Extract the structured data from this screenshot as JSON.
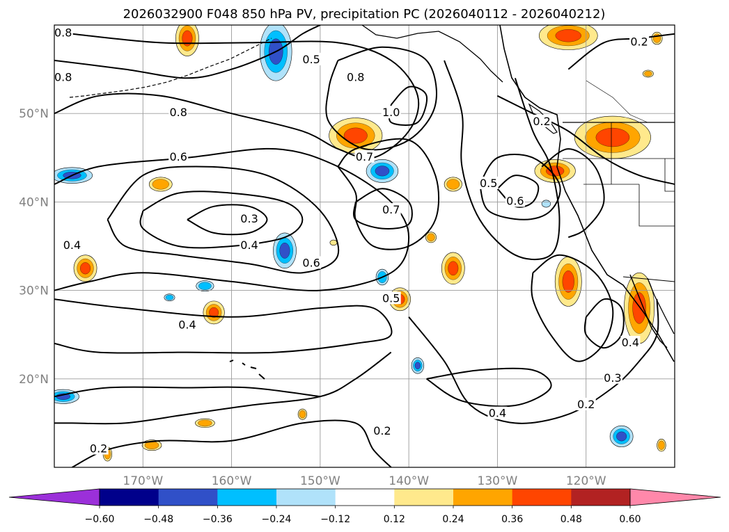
{
  "chart_data": {
    "type": "contour-map",
    "title": "2026032900 F048 850 hPa PV, precipitation PC (2026040112 - 2026040212)",
    "x_ticks": [
      "170°W",
      "160°W",
      "150°W",
      "140°W",
      "130°W",
      "120°W"
    ],
    "y_ticks": [
      "50°N",
      "40°N",
      "30°N",
      "20°N"
    ],
    "xlim": [
      -180,
      -110
    ],
    "ylim": [
      10,
      60
    ],
    "grid": true,
    "colorbar": {
      "levels": [
        -0.6,
        -0.48,
        -0.36,
        -0.24,
        -0.12,
        0.12,
        0.24,
        0.36,
        0.48,
        0.6
      ],
      "tick_labels": [
        "−0.60",
        "−0.48",
        "−0.36",
        "−0.24",
        "−0.12",
        "0.12",
        "0.24",
        "0.36",
        "0.48",
        "0.60"
      ],
      "colors": [
        "#9b30d9",
        "#00008b",
        "#3050c8",
        "#00bfff",
        "#b0e2fa",
        "#ffffff",
        "#ffe98c",
        "#ffa500",
        "#ff4500",
        "#b22222",
        "#ff88aa"
      ],
      "extend": "both"
    },
    "contour_labels": [
      {
        "text": "0.8",
        "lon": -179,
        "lat": 59
      },
      {
        "text": "0.8",
        "lon": -179,
        "lat": 54
      },
      {
        "text": "0.5",
        "lon": -151,
        "lat": 56
      },
      {
        "text": "0.8",
        "lon": -146,
        "lat": 54
      },
      {
        "text": "0.8",
        "lon": -166,
        "lat": 50
      },
      {
        "text": "1.0",
        "lon": -142,
        "lat": 50
      },
      {
        "text": "0.6",
        "lon": -166,
        "lat": 45
      },
      {
        "text": "0.7",
        "lon": -145,
        "lat": 45
      },
      {
        "text": "0.5",
        "lon": -131,
        "lat": 42
      },
      {
        "text": "0.6",
        "lon": -128,
        "lat": 40
      },
      {
        "text": "0.3",
        "lon": -158,
        "lat": 38
      },
      {
        "text": "0.7",
        "lon": -142,
        "lat": 39
      },
      {
        "text": "0.4",
        "lon": -158,
        "lat": 35
      },
      {
        "text": "0.4",
        "lon": -178,
        "lat": 35
      },
      {
        "text": "0.6",
        "lon": -151,
        "lat": 33
      },
      {
        "text": "0.5",
        "lon": -142,
        "lat": 29
      },
      {
        "text": "0.4",
        "lon": -165,
        "lat": 26
      },
      {
        "text": "0.4",
        "lon": -115,
        "lat": 24
      },
      {
        "text": "0.3",
        "lon": -117,
        "lat": 20
      },
      {
        "text": "0.2",
        "lon": -120,
        "lat": 17
      },
      {
        "text": "0.4",
        "lon": -130,
        "lat": 16
      },
      {
        "text": "0.2",
        "lon": -143,
        "lat": 14
      },
      {
        "text": "0.2",
        "lon": -175,
        "lat": 12
      },
      {
        "text": "0.2",
        "lon": -125,
        "lat": 49
      },
      {
        "text": "0.2",
        "lon": -114,
        "lat": 58
      }
    ],
    "contour_lines": [
      {
        "pts": [
          [
            -170,
            39
          ],
          [
            -166,
            41
          ],
          [
            -160,
            41
          ],
          [
            -154,
            40
          ],
          [
            -152,
            38
          ],
          [
            -154,
            36
          ],
          [
            -160,
            35
          ],
          [
            -166,
            35
          ],
          [
            -170,
            37
          ],
          [
            -170,
            39
          ]
        ]
      },
      {
        "pts": [
          [
            -165,
            38
          ],
          [
            -162,
            39.5
          ],
          [
            -158,
            39.5
          ],
          [
            -156,
            38
          ],
          [
            -158,
            36.5
          ],
          [
            -162,
            36.5
          ],
          [
            -165,
            38
          ]
        ]
      },
      {
        "pts": [
          [
            -174,
            38
          ],
          [
            -170,
            43
          ],
          [
            -164,
            44
          ],
          [
            -156,
            43
          ],
          [
            -150,
            39
          ],
          [
            -148,
            34
          ],
          [
            -152,
            32
          ],
          [
            -158,
            33
          ],
          [
            -166,
            34
          ],
          [
            -172,
            35
          ],
          [
            -174,
            38
          ]
        ]
      },
      {
        "pts": [
          [
            -180,
            42
          ],
          [
            -175,
            44
          ],
          [
            -165,
            45
          ],
          [
            -155,
            46
          ],
          [
            -148,
            44
          ],
          [
            -142,
            40
          ],
          [
            -140,
            36
          ],
          [
            -142,
            32
          ],
          [
            -150,
            30
          ],
          [
            -160,
            31
          ],
          [
            -170,
            32
          ],
          [
            -176,
            31
          ],
          [
            -180,
            30
          ]
        ]
      },
      {
        "pts": [
          [
            -180,
            29
          ],
          [
            -172,
            28
          ],
          [
            -160,
            27
          ],
          [
            -150,
            28
          ],
          [
            -144,
            28
          ],
          [
            -142,
            25
          ],
          [
            -146,
            24
          ],
          [
            -155,
            23
          ],
          [
            -165,
            23
          ],
          [
            -175,
            23
          ],
          [
            -180,
            24
          ]
        ]
      },
      {
        "pts": [
          [
            -180,
            50
          ],
          [
            -175,
            52
          ],
          [
            -168,
            52
          ],
          [
            -160,
            50
          ],
          [
            -152,
            48
          ],
          [
            -148,
            46
          ],
          [
            -144,
            45
          ],
          [
            -140,
            48
          ],
          [
            -139,
            52
          ],
          [
            -142,
            56
          ],
          [
            -148,
            58
          ],
          [
            -158,
            58
          ],
          [
            -168,
            58
          ],
          [
            -178,
            59
          ]
        ]
      },
      {
        "pts": [
          [
            -180,
            56
          ],
          [
            -172,
            55
          ],
          [
            -165,
            54
          ],
          [
            -160,
            55
          ],
          [
            -155,
            57
          ],
          [
            -152,
            59
          ],
          [
            -150,
            60
          ]
        ]
      },
      {
        "pts": [
          [
            -148,
            56
          ],
          [
            -143,
            57.5
          ],
          [
            -138,
            56
          ],
          [
            -137,
            51
          ],
          [
            -140,
            47
          ],
          [
            -145,
            46
          ],
          [
            -149,
            49
          ],
          [
            -149,
            53
          ],
          [
            -148,
            56
          ]
        ]
      },
      {
        "pts": [
          [
            -142,
            51
          ],
          [
            -140,
            53
          ],
          [
            -138,
            52
          ],
          [
            -139,
            49
          ],
          [
            -142,
            49
          ],
          [
            -142,
            51
          ]
        ]
      },
      {
        "pts": [
          [
            -148,
            44
          ],
          [
            -146,
            46
          ],
          [
            -140,
            47
          ],
          [
            -137,
            43
          ],
          [
            -137,
            38
          ],
          [
            -140,
            35
          ],
          [
            -144,
            35
          ],
          [
            -146,
            38
          ],
          [
            -146,
            41
          ],
          [
            -148,
            44
          ]
        ]
      },
      {
        "pts": [
          [
            -146,
            40
          ],
          [
            -143,
            41.5
          ],
          [
            -140,
            40
          ],
          [
            -140,
            37.5
          ],
          [
            -143,
            37
          ],
          [
            -146,
            38
          ],
          [
            -146,
            40
          ]
        ]
      },
      {
        "pts": [
          [
            -136,
            56
          ],
          [
            -134,
            50
          ],
          [
            -134,
            44
          ],
          [
            -132,
            38
          ],
          [
            -128,
            34
          ],
          [
            -124,
            34
          ],
          [
            -123,
            38
          ],
          [
            -124,
            44
          ],
          [
            -126,
            48
          ],
          [
            -128,
            54
          ]
        ]
      },
      {
        "pts": [
          [
            -132,
            42
          ],
          [
            -130,
            45
          ],
          [
            -126,
            45
          ],
          [
            -123,
            42
          ],
          [
            -124,
            39
          ],
          [
            -127,
            38
          ],
          [
            -131,
            39
          ],
          [
            -132,
            42
          ]
        ]
      },
      {
        "pts": [
          [
            -130,
            41.5
          ],
          [
            -128,
            43
          ],
          [
            -125.5,
            42
          ],
          [
            -126,
            40
          ],
          [
            -128,
            39.5
          ],
          [
            -130,
            41.5
          ]
        ]
      },
      {
        "pts": [
          [
            -125,
            44
          ],
          [
            -122,
            46
          ],
          [
            -119,
            44
          ],
          [
            -118,
            40
          ],
          [
            -120,
            37
          ],
          [
            -122,
            36
          ]
        ]
      },
      {
        "pts": [
          [
            -126,
            32
          ],
          [
            -123,
            34
          ],
          [
            -119,
            32
          ],
          [
            -117,
            28
          ],
          [
            -118,
            24
          ],
          [
            -121,
            22
          ],
          [
            -124,
            25
          ],
          [
            -126,
            29
          ],
          [
            -126,
            32
          ]
        ]
      },
      {
        "pts": [
          [
            -120,
            27
          ],
          [
            -118,
            29
          ],
          [
            -116,
            28
          ],
          [
            -116,
            25
          ],
          [
            -118,
            23.5
          ],
          [
            -120,
            25
          ],
          [
            -120,
            27
          ]
        ]
      },
      {
        "pts": [
          [
            -140,
            27
          ],
          [
            -136,
            22
          ],
          [
            -133,
            17
          ],
          [
            -128,
            15
          ],
          [
            -122,
            16
          ],
          [
            -117,
            19
          ],
          [
            -114,
            22
          ],
          [
            -112,
            25
          ],
          [
            -112,
            29
          ]
        ]
      },
      {
        "pts": [
          [
            -138,
            20
          ],
          [
            -134,
            17.5
          ],
          [
            -128,
            17
          ],
          [
            -124,
            19
          ],
          [
            -126,
            21
          ],
          [
            -132,
            21
          ],
          [
            -138,
            20
          ]
        ]
      },
      {
        "pts": [
          [
            -142,
            23
          ],
          [
            -146,
            20
          ],
          [
            -150,
            18
          ],
          [
            -158,
            17
          ],
          [
            -165,
            16
          ],
          [
            -172,
            15
          ],
          [
            -178,
            15
          ],
          [
            -180,
            15
          ]
        ]
      },
      {
        "pts": [
          [
            -180,
            18
          ],
          [
            -174,
            19
          ],
          [
            -165,
            19
          ],
          [
            -158,
            19
          ],
          [
            -150,
            18
          ]
        ]
      },
      {
        "pts": [
          [
            -178,
            10
          ],
          [
            -174,
            12
          ],
          [
            -168,
            13
          ],
          [
            -160,
            13
          ],
          [
            -152,
            15
          ],
          [
            -146,
            15
          ],
          [
            -144,
            12
          ],
          [
            -142,
            10
          ]
        ]
      },
      {
        "pts": [
          [
            -122,
            55
          ],
          [
            -118,
            58
          ],
          [
            -114,
            58.5
          ],
          [
            -110,
            59
          ]
        ]
      },
      {
        "pts": [
          [
            -130,
            52
          ],
          [
            -126,
            50
          ],
          [
            -122,
            48
          ],
          [
            -118,
            45
          ],
          [
            -114,
            43
          ],
          [
            -110,
            42
          ]
        ]
      }
    ],
    "precip_blobs": [
      {
        "lon": -146,
        "lat": 47.5,
        "rx": 3,
        "ry": 2,
        "value": 0.4
      },
      {
        "lon": -165,
        "lat": 58.5,
        "rx": 1.3,
        "ry": 2,
        "value": 0.4
      },
      {
        "lon": -155,
        "lat": 57,
        "rx": 1.8,
        "ry": 3.3,
        "value": -0.4
      },
      {
        "lon": -143,
        "lat": 43.5,
        "rx": 1.8,
        "ry": 1.3,
        "value": -0.4
      },
      {
        "lon": -178,
        "lat": 43,
        "rx": 2.3,
        "ry": 0.9,
        "value": -0.4
      },
      {
        "lon": -154,
        "lat": 34.5,
        "rx": 1.3,
        "ry": 2,
        "value": -0.4
      },
      {
        "lon": -143,
        "lat": 31.5,
        "rx": 0.7,
        "ry": 0.9,
        "value": -0.25
      },
      {
        "lon": -141,
        "lat": 29,
        "rx": 1.2,
        "ry": 1.3,
        "value": 0.4
      },
      {
        "lon": -135,
        "lat": 32.5,
        "rx": 1.3,
        "ry": 1.8,
        "value": 0.42
      },
      {
        "lon": -135,
        "lat": 42,
        "rx": 1,
        "ry": 0.8,
        "value": 0.3
      },
      {
        "lon": -123.5,
        "lat": 43.5,
        "rx": 2.3,
        "ry": 1.3,
        "value": 0.4
      },
      {
        "lon": -117,
        "lat": 47.3,
        "rx": 4.3,
        "ry": 2.4,
        "value": 0.45
      },
      {
        "lon": -122,
        "lat": 58.8,
        "rx": 3.3,
        "ry": 1.6,
        "value": 0.4
      },
      {
        "lon": -122,
        "lat": 31,
        "rx": 1.5,
        "ry": 2.8,
        "value": 0.4
      },
      {
        "lon": -114,
        "lat": 28,
        "rx": 1.7,
        "ry": 4,
        "value": 0.42
      },
      {
        "lon": -176.5,
        "lat": 32.5,
        "rx": 1.3,
        "ry": 1.5,
        "value": 0.4
      },
      {
        "lon": -162,
        "lat": 27.5,
        "rx": 1.2,
        "ry": 1.3,
        "value": 0.4
      },
      {
        "lon": -179,
        "lat": 18,
        "rx": 1.8,
        "ry": 0.8,
        "value": -0.4
      },
      {
        "lon": -168,
        "lat": 42,
        "rx": 1.3,
        "ry": 0.8,
        "value": 0.36
      },
      {
        "lon": -139,
        "lat": 21.5,
        "rx": 0.7,
        "ry": 0.9,
        "value": -0.4
      },
      {
        "lon": -116,
        "lat": 13.5,
        "rx": 1.3,
        "ry": 1.2,
        "value": -0.45
      },
      {
        "lon": -163,
        "lat": 15,
        "rx": 1.1,
        "ry": 0.5,
        "value": 0.36
      },
      {
        "lon": -169,
        "lat": 12.5,
        "rx": 1.1,
        "ry": 0.6,
        "value": 0.36
      },
      {
        "lon": -174,
        "lat": 11.5,
        "rx": 0.5,
        "ry": 0.8,
        "value": 0.36
      },
      {
        "lon": -111.5,
        "lat": 12.5,
        "rx": 0.5,
        "ry": 0.7,
        "value": 0.36
      },
      {
        "lon": -163,
        "lat": 30.5,
        "rx": 1,
        "ry": 0.6,
        "value": -0.36
      },
      {
        "lon": -167,
        "lat": 29.2,
        "rx": 0.6,
        "ry": 0.4,
        "value": -0.36
      },
      {
        "lon": -148.5,
        "lat": 35.4,
        "rx": 0.4,
        "ry": 0.3,
        "value": 0.24
      },
      {
        "lon": -137.5,
        "lat": 36,
        "rx": 0.6,
        "ry": 0.6,
        "value": 0.36
      },
      {
        "lon": -124.5,
        "lat": 39.8,
        "rx": 0.5,
        "ry": 0.4,
        "value": -0.24
      },
      {
        "lon": -112,
        "lat": 58.5,
        "rx": 0.6,
        "ry": 0.7,
        "value": 0.36
      },
      {
        "lon": -113,
        "lat": 54.5,
        "rx": 0.6,
        "ry": 0.4,
        "value": 0.36
      },
      {
        "lon": -152,
        "lat": 16,
        "rx": 0.5,
        "ry": 0.6,
        "value": 0.3
      }
    ]
  }
}
